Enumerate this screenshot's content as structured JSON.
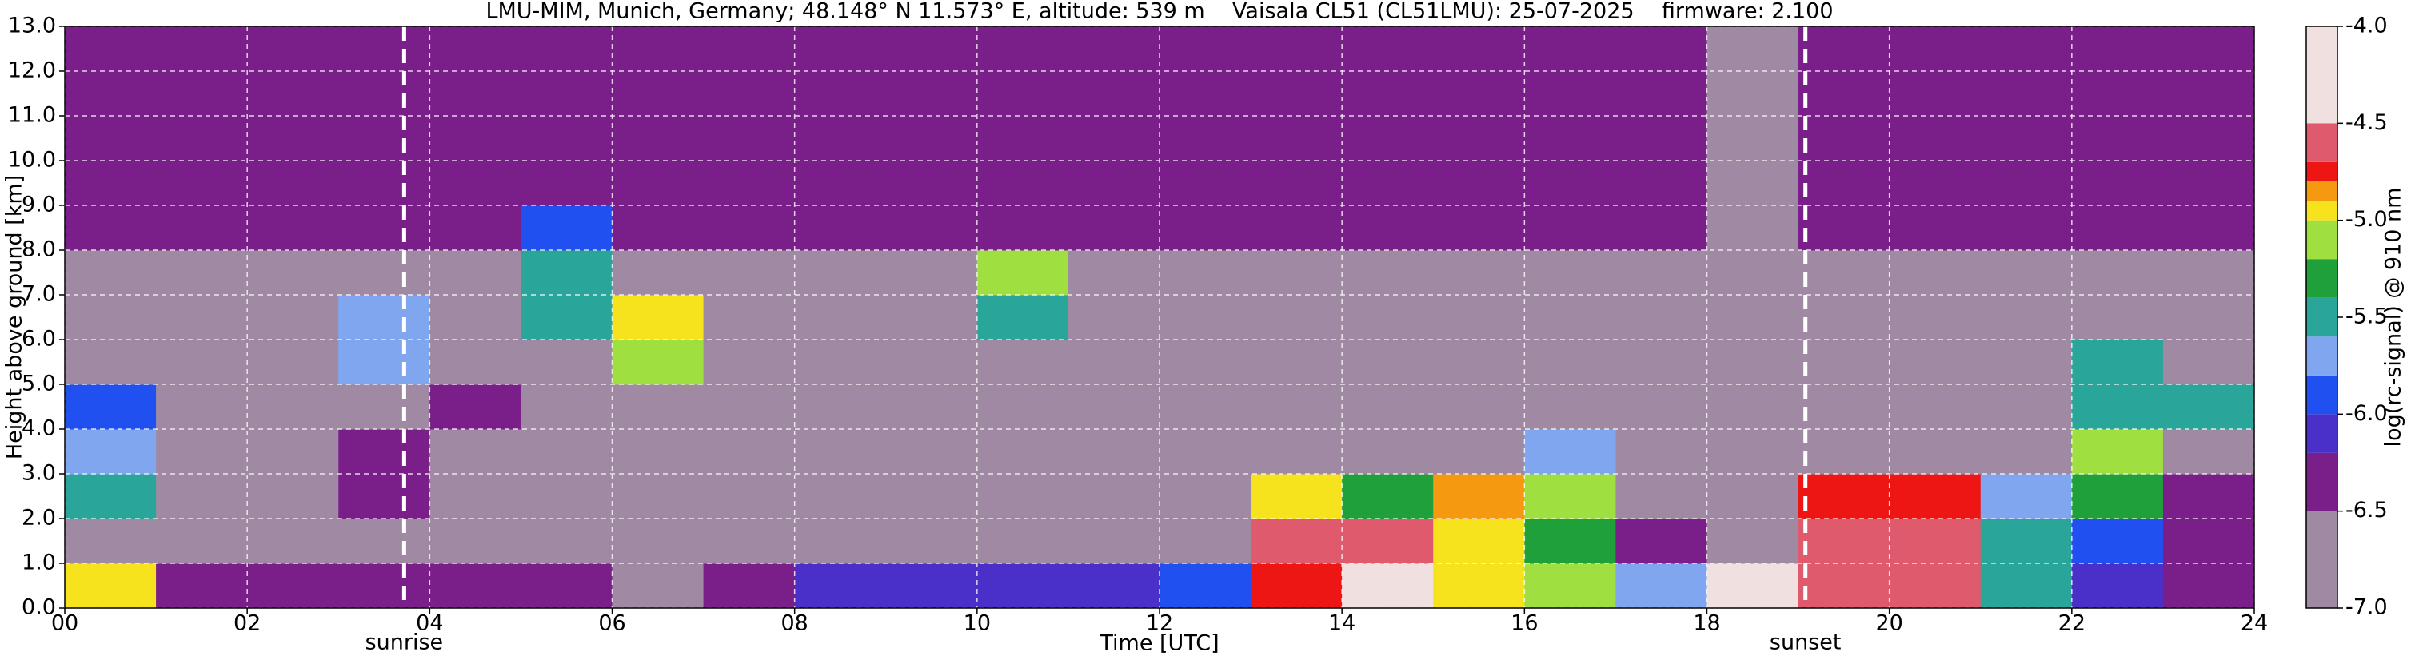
{
  "chart_data": {
    "type": "heatmap",
    "title": "LMU-MIM, Munich, Germany; 48.148° N 11.573° E, altitude: 539 m    Vaisala CL51 (CL51LMU): 25-07-2025    firmware: 2.100",
    "xlabel": "Time [UTC]",
    "ylabel": "Height above ground [km]",
    "colorbar_label": "log(rc-signal) @ 910 nm",
    "xlim": [
      0,
      24
    ],
    "ylim": [
      0,
      13
    ],
    "zlim": [
      -7,
      -4
    ],
    "xticks": [
      {
        "value": 0,
        "label": "00"
      },
      {
        "value": 2,
        "label": "02"
      },
      {
        "value": 4,
        "label": "04"
      },
      {
        "value": 6,
        "label": "06"
      },
      {
        "value": 8,
        "label": "08"
      },
      10,
      12,
      14,
      16,
      18,
      20,
      22,
      24
    ],
    "yticks": [
      {
        "value": 0,
        "label": "0.0"
      },
      {
        "value": 1,
        "label": "1.0"
      },
      {
        "value": 2,
        "label": "2.0"
      },
      {
        "value": 3,
        "label": "3.0"
      },
      {
        "value": 4,
        "label": "4.0"
      },
      {
        "value": 5,
        "label": "5.0"
      },
      {
        "value": 6,
        "label": "6.0"
      },
      {
        "value": 7,
        "label": "7.0"
      },
      {
        "value": 8,
        "label": "8.0"
      },
      {
        "value": 9,
        "label": "9.0"
      },
      {
        "value": 10,
        "label": "10.0"
      },
      {
        "value": 11,
        "label": "11.0"
      },
      {
        "value": 12,
        "label": "12.0"
      },
      {
        "value": 13,
        "label": "13.0"
      }
    ],
    "zticks": [
      {
        "value": -4,
        "label": "-4.0"
      },
      -4.5,
      {
        "value": -5,
        "label": "-5.0"
      },
      -5.5,
      {
        "value": -6,
        "label": "-6.0"
      },
      -6.5,
      {
        "value": -7,
        "label": "-7.0"
      }
    ],
    "grid": true,
    "grid_color": "#ffffff",
    "colorscale": [
      [
        -7,
        "#a08aa3"
      ],
      [
        -6.5,
        "#7a1f8a"
      ],
      [
        -6.2,
        "#4a2fc9"
      ],
      [
        -6.0,
        "#2050f0"
      ],
      [
        -5.8,
        "#7fa6ef"
      ],
      [
        -5.6,
        "#2aa59a"
      ],
      [
        -5.4,
        "#1fa03a"
      ],
      [
        -5.2,
        "#9fe040"
      ],
      [
        -5.0,
        "#f7e21e"
      ],
      [
        -4.9,
        "#f59a10"
      ],
      [
        -4.8,
        "#ee1515"
      ],
      [
        -4.7,
        "#e05a6e"
      ],
      [
        -4.5,
        "#f0e0e0"
      ]
    ],
    "xbins": [
      0,
      1,
      2,
      3,
      4,
      5,
      6,
      7,
      8,
      9,
      10,
      11,
      12,
      13,
      14,
      15,
      16,
      17,
      18,
      19,
      20,
      21,
      22,
      23,
      24
    ],
    "ybins": [
      0,
      1,
      2,
      3,
      4,
      5,
      6,
      7,
      8,
      9,
      10,
      11,
      12,
      13
    ],
    "z": [
      [
        -5.0,
        -6.5,
        -6.5,
        -6.3,
        -6.4,
        -6.5,
        -6.6,
        -6.5,
        -6.1,
        -6.1,
        -6.2,
        -6.2,
        -6.0,
        -4.8,
        -4.5,
        -5.0,
        -5.2,
        -5.8,
        -4.4,
        -4.6,
        -4.7,
        -5.6,
        -6.2,
        -6.4
      ],
      [
        -6.6,
        -6.6,
        -6.6,
        -6.8,
        -6.6,
        -6.7,
        -6.7,
        -6.8,
        -6.8,
        -6.8,
        -6.8,
        -6.8,
        -6.7,
        -4.6,
        -4.7,
        -5.0,
        -5.3,
        -6.5,
        -6.8,
        -4.6,
        -4.6,
        -5.6,
        -6.0,
        -6.5
      ],
      [
        -5.5,
        -6.7,
        -6.6,
        -6.5,
        -6.7,
        -6.7,
        -6.8,
        -6.6,
        -6.7,
        -6.7,
        -6.7,
        -6.7,
        -6.7,
        -5.0,
        -5.3,
        -4.9,
        -5.2,
        -6.6,
        -6.9,
        -4.8,
        -4.8,
        -5.7,
        -5.4,
        -6.4
      ],
      [
        -5.8,
        -6.8,
        -6.8,
        -6.5,
        -6.8,
        -6.8,
        -6.8,
        -6.8,
        -6.8,
        -6.8,
        -6.8,
        -6.8,
        -6.8,
        -6.8,
        -6.8,
        -6.8,
        -5.8,
        -6.8,
        -7.0,
        -6.9,
        -6.8,
        -6.8,
        -5.2,
        -6.8
      ],
      [
        -6.0,
        -6.8,
        -6.8,
        -6.8,
        -6.5,
        -6.8,
        -6.8,
        -6.8,
        -6.8,
        -6.8,
        -6.8,
        -6.8,
        -6.8,
        -6.8,
        -6.8,
        -6.8,
        -6.8,
        -6.8,
        -7.0,
        -6.8,
        -6.8,
        -6.8,
        -5.6,
        -5.5
      ],
      [
        -6.8,
        -6.8,
        -6.8,
        -5.8,
        -6.8,
        -6.8,
        -5.2,
        -6.8,
        -6.8,
        -6.8,
        -6.8,
        -6.8,
        -6.8,
        -6.8,
        -6.8,
        -6.8,
        -6.8,
        -6.8,
        -7.0,
        -6.8,
        -6.8,
        -6.8,
        -5.5,
        -6.8
      ],
      [
        -6.7,
        -6.7,
        -6.7,
        -5.8,
        -6.7,
        -5.5,
        -5.0,
        -6.7,
        -6.7,
        -6.7,
        -5.6,
        -6.7,
        -6.7,
        -6.7,
        -6.7,
        -6.7,
        -6.7,
        -6.7,
        -7.0,
        -6.7,
        -6.7,
        -6.7,
        -6.7,
        -6.7
      ],
      [
        -6.6,
        -6.6,
        -6.6,
        -6.6,
        -6.6,
        -5.5,
        -6.6,
        -6.6,
        -6.6,
        -6.6,
        -5.2,
        -6.6,
        -6.6,
        -6.6,
        -6.6,
        -6.6,
        -6.6,
        -6.6,
        -7.0,
        -6.6,
        -6.6,
        -6.6,
        -6.6,
        -6.6
      ],
      [
        -6.5,
        -6.5,
        -6.5,
        -6.5,
        -6.5,
        -6.0,
        -6.5,
        -6.5,
        -6.5,
        -6.5,
        -6.5,
        -6.5,
        -6.5,
        -6.5,
        -6.5,
        -6.5,
        -6.5,
        -6.5,
        -7.0,
        -6.5,
        -6.5,
        -6.5,
        -6.5,
        -6.5
      ],
      [
        -6.4,
        -6.4,
        -6.4,
        -6.4,
        -6.4,
        -6.4,
        -6.4,
        -6.4,
        -6.4,
        -6.4,
        -6.4,
        -6.4,
        -6.4,
        -6.4,
        -6.4,
        -6.4,
        -6.4,
        -6.4,
        -7.0,
        -6.4,
        -6.4,
        -6.4,
        -6.4,
        -6.4
      ],
      [
        -6.4,
        -6.4,
        -6.4,
        -6.4,
        -6.4,
        -6.4,
        -6.4,
        -6.4,
        -6.4,
        -6.4,
        -6.4,
        -6.4,
        -6.4,
        -6.4,
        -6.4,
        -6.4,
        -6.4,
        -6.4,
        -7.0,
        -6.4,
        -6.4,
        -6.4,
        -6.4,
        -6.4
      ],
      [
        -6.4,
        -6.4,
        -6.4,
        -6.4,
        -6.4,
        -6.4,
        -6.4,
        -6.4,
        -6.4,
        -6.4,
        -6.4,
        -6.4,
        -6.4,
        -6.4,
        -6.4,
        -6.4,
        -6.4,
        -6.4,
        -7.0,
        -6.4,
        -6.4,
        -6.4,
        -6.4,
        -6.4
      ],
      [
        -6.4,
        -6.4,
        -6.4,
        -6.4,
        -6.4,
        -6.4,
        -6.4,
        -6.4,
        -6.4,
        -6.4,
        -6.4,
        -6.4,
        -6.4,
        -6.4,
        -6.4,
        -6.4,
        -6.4,
        -6.4,
        -7.0,
        -6.4,
        -6.4,
        -6.4,
        -6.4,
        -6.4
      ]
    ],
    "annotations": [
      {
        "x": 3.72,
        "label": "sunrise"
      },
      {
        "x": 19.08,
        "label": "sunset"
      }
    ]
  }
}
